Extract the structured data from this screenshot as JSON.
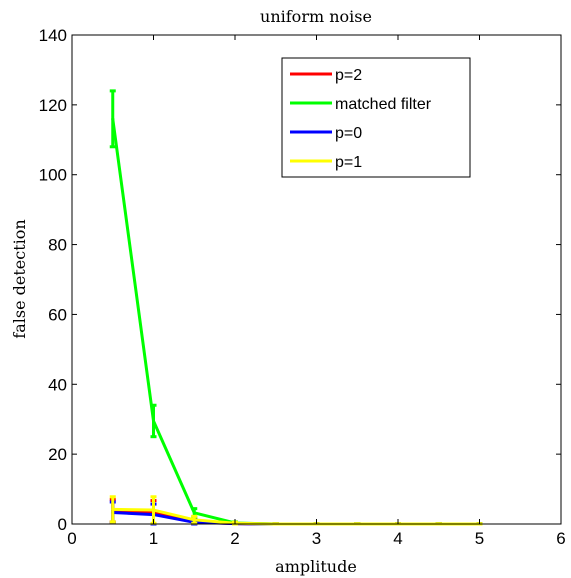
{
  "chart_data": {
    "type": "line",
    "title": "uniform noise",
    "xlabel": "amplitude",
    "ylabel": "false detection",
    "xlim": [
      0,
      6
    ],
    "ylim": [
      0,
      140
    ],
    "x_ticks": [
      0,
      1,
      2,
      3,
      4,
      5,
      6
    ],
    "y_ticks": [
      0,
      20,
      40,
      60,
      80,
      100,
      120,
      140
    ],
    "grid": false,
    "legend_position": "top-right",
    "x": [
      0.5,
      1,
      1.5,
      2,
      2.5,
      3,
      3.5,
      4,
      4.5,
      5
    ],
    "series": [
      {
        "name": "p=2",
        "color": "#ff0000",
        "values": [
          3.8,
          3.2,
          0.6,
          0.1,
          0,
          0,
          0,
          0,
          0,
          0
        ],
        "err": [
          3.2,
          3.5,
          0.8,
          0.2,
          0.1,
          0.1,
          0.1,
          0.1,
          0.1,
          0.1
        ]
      },
      {
        "name": "matched filter",
        "color": "#00ff00",
        "values": [
          116,
          29.5,
          3.2,
          0.3,
          0,
          0,
          0,
          0,
          0,
          0
        ],
        "err": [
          8,
          4.5,
          1.2,
          0.3,
          0.1,
          0.1,
          0.1,
          0.1,
          0.1,
          0.1
        ]
      },
      {
        "name": "p=0",
        "color": "#0000ff",
        "values": [
          3.3,
          2.7,
          0.5,
          0.1,
          0,
          0,
          0,
          0,
          0,
          0
        ],
        "err": [
          3,
          3,
          0.7,
          0.2,
          0.1,
          0.1,
          0.1,
          0.1,
          0.1,
          0.1
        ]
      },
      {
        "name": "p=1",
        "color": "#ffff00",
        "values": [
          4.2,
          4.0,
          1.2,
          0.2,
          0,
          0,
          0,
          0,
          0,
          0
        ],
        "err": [
          3.6,
          3.8,
          1.0,
          0.3,
          0.1,
          0.1,
          0.1,
          0.1,
          0.1,
          0.1
        ]
      }
    ]
  }
}
